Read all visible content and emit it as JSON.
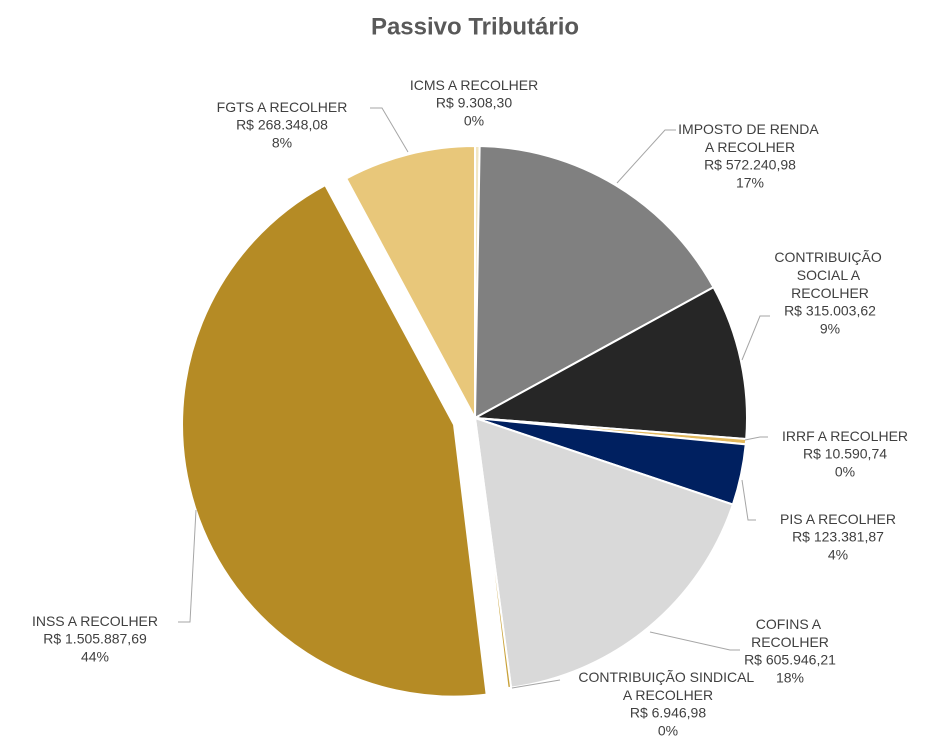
{
  "chart_data": {
    "type": "pie",
    "title": "Passivo Tributário",
    "categories": [
      "ICMS A RECOLHER",
      "IMPOSTO DE RENDA A RECOLHER",
      "CONTRIBUIÇÃO SOCIAL A RECOLHER",
      "IRRF A RECOLHER",
      "PIS A RECOLHER",
      "COFINS A RECOLHER",
      "CONTRIBUIÇÃO SINDICAL A RECOLHER",
      "INSS A RECOLHER",
      "FGTS A RECOLHER"
    ],
    "values": [
      9308.3,
      572240.98,
      315003.62,
      10590.74,
      123381.87,
      605946.21,
      6946.98,
      1505887.69,
      268348.08
    ],
    "value_labels": [
      "R$ 9.308,30",
      "R$ 572.240,98",
      "R$ 315.003,62",
      "R$ 10.590,74",
      "R$ 123.381,87",
      "R$ 605.946,21",
      "R$ 6.946,98",
      "R$ 1.505.887,69",
      "R$ 268.348,08"
    ],
    "percentages": [
      0,
      17,
      9,
      0,
      4,
      18,
      0,
      44,
      8
    ],
    "percentage_labels": [
      "0%",
      "17%",
      "9%",
      "0%",
      "4%",
      "18%",
      "0%",
      "44%",
      "8%"
    ],
    "colors": [
      "#f2e6c2",
      "#808080",
      "#262626",
      "#e2b85c",
      "#002060",
      "#d9d9d9",
      "#c9a23a",
      "#b58b25",
      "#e8c77a"
    ],
    "exploded": [
      false,
      false,
      false,
      false,
      false,
      false,
      false,
      true,
      false
    ]
  }
}
